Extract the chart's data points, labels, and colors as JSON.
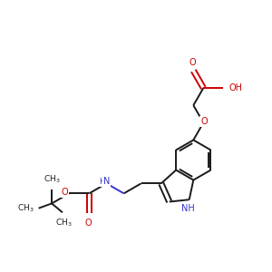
{
  "background_color": "#ffffff",
  "bond_color": "#1a1a1a",
  "oxygen_color": "#cc0000",
  "nitrogen_color": "#3333cc",
  "line_width": 1.4,
  "figsize": [
    3.0,
    3.0
  ],
  "dpi": 100,
  "xlim": [
    0,
    10
  ],
  "ylim": [
    0,
    10
  ],
  "BL": 0.75,
  "label_fontsize": 7.0,
  "tbu_label_fontsize": 6.5
}
